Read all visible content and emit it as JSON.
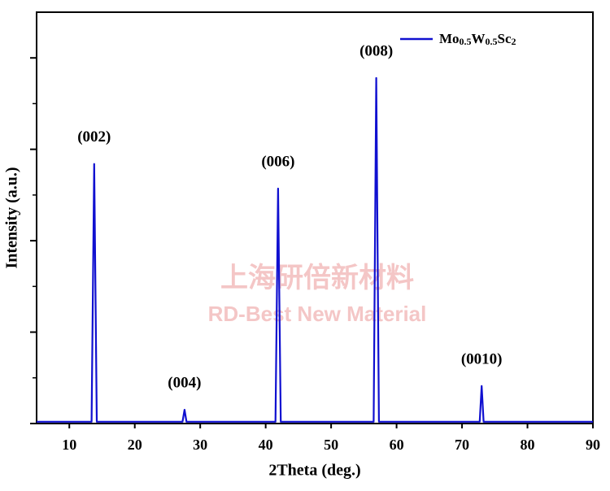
{
  "chart_data": {
    "type": "line",
    "x_label": "2Theta (deg.)",
    "y_label": "Intensity (a.u.)",
    "x": [
      5,
      13.4,
      13.8,
      14.2,
      27.3,
      27.6,
      27.9,
      41.5,
      41.9,
      42.3,
      56.5,
      56.9,
      57.3,
      72.7,
      73.0,
      73.3,
      90
    ],
    "series": [
      {
        "name": "Mo0.5W0.5Sc2",
        "color": "#1010d0",
        "values": [
          0.02,
          0.02,
          2.84,
          0.02,
          0.02,
          0.15,
          0.02,
          0.02,
          2.57,
          0.02,
          0.02,
          3.78,
          0.02,
          0.02,
          0.41,
          0.02,
          0.02
        ]
      }
    ],
    "peak_labels": [
      "(002)",
      "(004)",
      "(006)",
      "(008)",
      "(0010)"
    ],
    "xlim": [
      5,
      90
    ],
    "xticks": [
      10,
      20,
      30,
      40,
      50,
      60,
      70,
      80,
      90
    ],
    "ylim": [
      0,
      4.5
    ],
    "yticks": [
      0,
      1,
      2,
      3,
      4
    ],
    "y_minor_ticks": [
      0.5,
      1.5,
      2.5,
      3.5
    ],
    "show_ytick_labels": false,
    "legend": "upper right",
    "watermark": [
      "上海研倍新材料",
      "RD-Best New Material"
    ],
    "watermark_color": "#f4c6c6"
  }
}
